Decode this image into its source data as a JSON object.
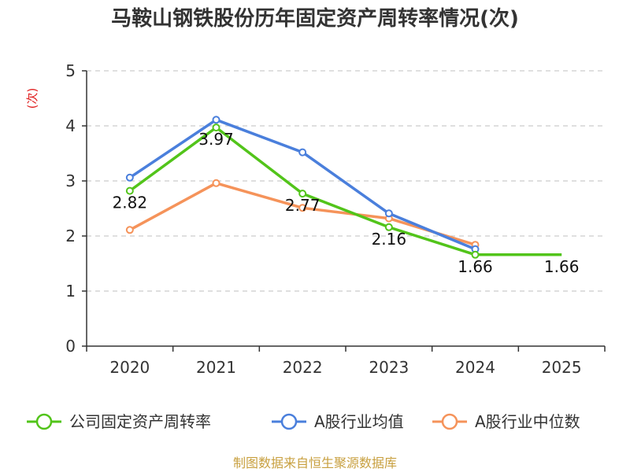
{
  "chart_data": {
    "type": "line",
    "title": "马鞍山钢铁股份历年固定资产周转率情况(次)",
    "ylabel": "(次)",
    "xlabel": "",
    "ylim": [
      0,
      5
    ],
    "yticks": [
      0,
      1,
      2,
      3,
      4,
      5
    ],
    "categories": [
      "2020",
      "2021",
      "2022",
      "2023",
      "2024",
      "2025"
    ],
    "grid": true,
    "legend_position": "bottom",
    "series": [
      {
        "name": "公司固定资产周转率",
        "color": "#52c41a",
        "values": [
          2.82,
          3.97,
          2.77,
          2.16,
          1.66,
          1.66
        ],
        "labels": [
          "2.82",
          "3.97",
          "2.77",
          "2.16",
          "1.66",
          "1.66"
        ]
      },
      {
        "name": "A股行业均值",
        "color": "#4a7fdc",
        "values": [
          3.06,
          4.11,
          3.52,
          2.41,
          1.76,
          null
        ]
      },
      {
        "name": "A股行业中位数",
        "color": "#f5935a",
        "values": [
          2.11,
          2.96,
          2.51,
          2.32,
          1.84,
          null
        ]
      }
    ]
  },
  "source": "制图数据来自恒生聚源数据库"
}
